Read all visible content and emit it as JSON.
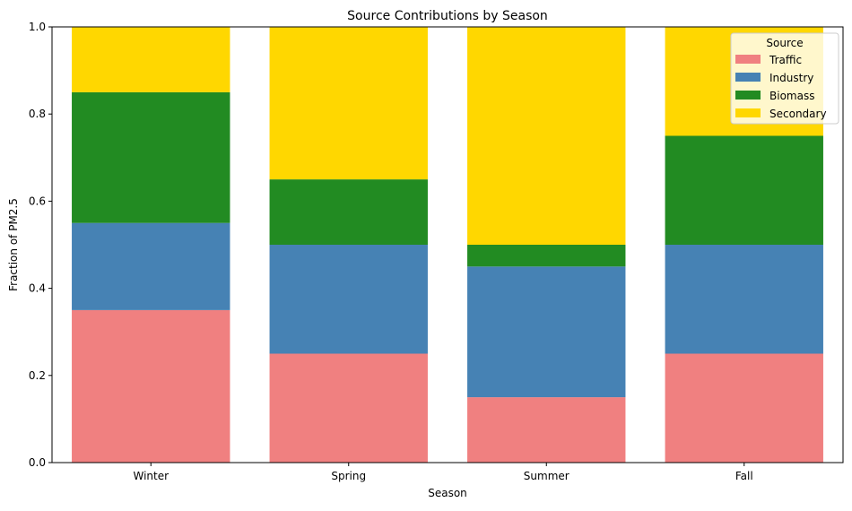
{
  "chart_data": {
    "type": "bar",
    "stacked": true,
    "title": "Source Contributions by Season",
    "xlabel": "Season",
    "ylabel": "Fraction of PM2.5",
    "ylim": [
      0,
      1.0
    ],
    "yticks": [
      "0.0",
      "0.2",
      "0.4",
      "0.6",
      "0.8",
      "1.0"
    ],
    "categories": [
      "Winter",
      "Spring",
      "Summer",
      "Fall"
    ],
    "series": [
      {
        "name": "Traffic",
        "color": "#F08080",
        "values": [
          0.35,
          0.25,
          0.15,
          0.25
        ]
      },
      {
        "name": "Industry",
        "color": "#4682B4",
        "values": [
          0.2,
          0.25,
          0.3,
          0.25
        ]
      },
      {
        "name": "Biomass",
        "color": "#228B22",
        "values": [
          0.3,
          0.15,
          0.05,
          0.25
        ]
      },
      {
        "name": "Secondary",
        "color": "#FFD700",
        "values": [
          0.15,
          0.35,
          0.5,
          0.25
        ]
      }
    ],
    "legend": {
      "title": "Source",
      "placement": "top-right"
    },
    "grid": false
  }
}
